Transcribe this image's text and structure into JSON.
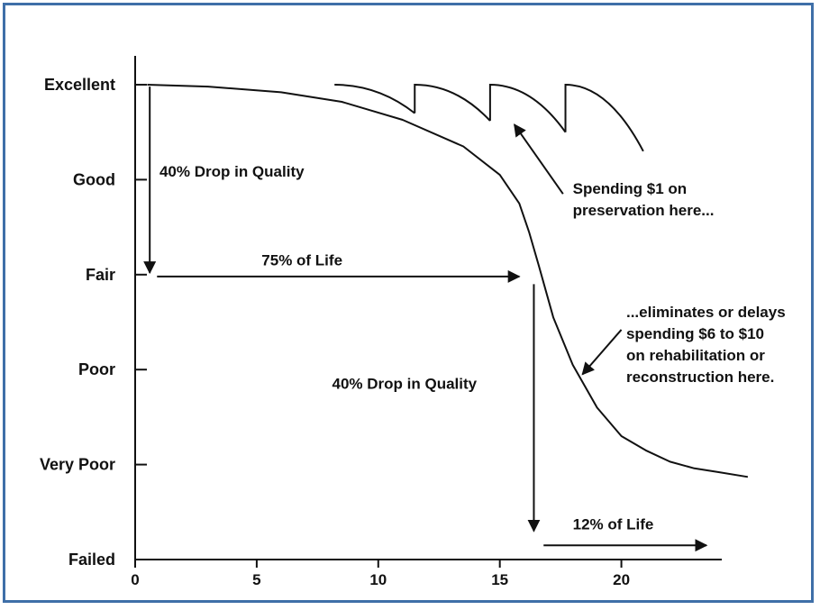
{
  "chart_data": {
    "type": "line",
    "xlim": [
      0,
      25
    ],
    "ylim": [
      0,
      5
    ],
    "x_ticks": [
      0,
      5,
      10,
      15,
      20
    ],
    "y_ticks": [
      {
        "value": 5,
        "label": "Excellent"
      },
      {
        "value": 4,
        "label": "Good"
      },
      {
        "value": 3,
        "label": "Fair"
      },
      {
        "value": 2,
        "label": "Poor"
      },
      {
        "value": 1,
        "label": "Very Poor"
      },
      {
        "value": 0,
        "label": "Failed"
      }
    ],
    "series": [
      {
        "x": [
          0.5,
          3,
          6,
          8.5,
          11,
          13.5,
          15,
          15.8,
          16.2,
          16.6,
          17.2,
          18,
          19,
          20,
          21,
          22,
          23,
          24,
          25.2
        ],
        "y": [
          5,
          4.98,
          4.92,
          4.82,
          4.63,
          4.35,
          4.05,
          3.75,
          3.45,
          3.1,
          2.55,
          2.05,
          1.6,
          1.3,
          1.15,
          1.03,
          0.96,
          0.92,
          0.87
        ]
      },
      {
        "segments": [
          {
            "x": [
              8.2,
              8.2,
              11.5
            ],
            "y": [
              5,
              5,
              4.7
            ]
          },
          {
            "x": [
              11.5,
              11.5,
              14.6
            ],
            "y": [
              4.7,
              5,
              4.62
            ]
          },
          {
            "x": [
              14.6,
              14.6,
              17.7
            ],
            "y": [
              4.62,
              5,
              4.5
            ]
          },
          {
            "x": [
              17.7,
              17.7,
              20.9
            ],
            "y": [
              4.5,
              5,
              4.3
            ]
          }
        ]
      }
    ],
    "annotations": [
      {
        "text": "40% Drop in Quality",
        "x": 1,
        "y": 4.03,
        "arrow": {
          "from": [
            0.6,
            4.98
          ],
          "to": [
            0.6,
            3.02
          ]
        }
      },
      {
        "text": "75% of Life",
        "x": 5.2,
        "y": 3.1,
        "arrow": {
          "from": [
            0.9,
            2.98
          ],
          "to": [
            15.8,
            2.98
          ]
        }
      },
      {
        "text": "40% Drop in Quality",
        "x": 8.1,
        "y": 1.8,
        "arrow": {
          "from": [
            16.4,
            2.9
          ],
          "to": [
            16.4,
            0.3
          ]
        }
      },
      {
        "text": "12% of Life",
        "x": 18,
        "y": 0.32,
        "arrow": {
          "from": [
            16.8,
            0.15
          ],
          "to": [
            23.5,
            0.15
          ]
        }
      },
      {
        "lines": [
          "Spending $1 on",
          "preservation here..."
        ],
        "x": 18,
        "y": 3.85,
        "arrow": {
          "from": [
            17.6,
            3.85
          ],
          "to": [
            15.6,
            4.58
          ]
        }
      },
      {
        "lines": [
          "...eliminates or delays",
          "spending $6 to $10",
          "on rehabilitation or",
          "reconstruction here."
        ],
        "x": 20.2,
        "y": 2.55,
        "arrow": {
          "from": [
            20,
            2.42
          ],
          "to": [
            18.4,
            1.95
          ]
        }
      }
    ]
  }
}
